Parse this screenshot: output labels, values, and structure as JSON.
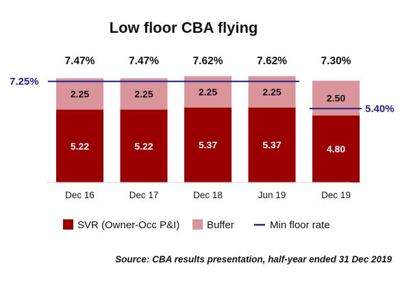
{
  "title": "Low floor CBA flying",
  "source": "Source: CBA results presentation, half-year ended 31 Dec 2019",
  "colors": {
    "svr": "#9b0000",
    "buffer": "#d9959a",
    "floor": "#1e1e8c"
  },
  "chart_data": {
    "type": "bar",
    "stacked": true,
    "title": "Low floor CBA flying",
    "categories": [
      "Dec 16",
      "Dec 17",
      "Dec 18",
      "Jun 19",
      "Dec 19"
    ],
    "series": [
      {
        "name": "SVR (Owner-Occ P&I)",
        "values": [
          5.22,
          5.22,
          5.37,
          5.37,
          4.8
        ],
        "labels": [
          "5.22",
          "5.22",
          "5.37",
          "5.37",
          "4.80"
        ]
      },
      {
        "name": "Buffer",
        "values": [
          2.25,
          2.25,
          2.25,
          2.25,
          2.5
        ],
        "labels": [
          "2.25",
          "2.25",
          "2.25",
          "2.25",
          "2.50"
        ]
      }
    ],
    "totals": [
      "7.47%",
      "7.47%",
      "7.62%",
      "7.62%",
      "7.30%"
    ],
    "floor_line": {
      "name": "Min floor rate",
      "segments": [
        {
          "from_category": "Dec 16",
          "to_category": "Jun 19",
          "value": 7.25,
          "label": "7.25%"
        },
        {
          "from_category": "Dec 19",
          "to_category": "Dec 19",
          "value": 5.4,
          "label": "5.40%"
        }
      ]
    },
    "ylim": [
      0,
      8
    ],
    "legend": {
      "position": "bottom"
    },
    "grid": false
  }
}
